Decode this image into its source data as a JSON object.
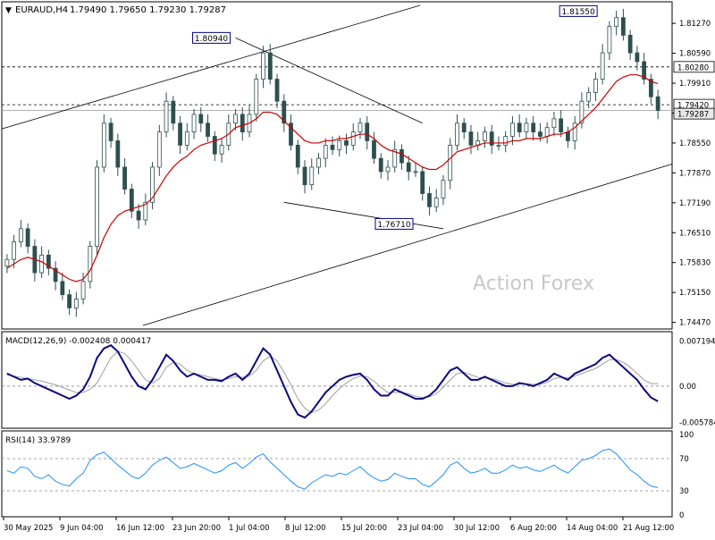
{
  "header": {
    "arrow": "▼",
    "symbol": "EURAUD,H4",
    "ohlc": "1.79490 1.79650 1.79230 1.79287"
  },
  "watermark": "Action Forex",
  "colors": {
    "candle": "#2f4f4f",
    "ma": "#cc0000",
    "macd_main": "#0a0a80",
    "macd_signal": "#a0a0a0",
    "rsi": "#1e90ff",
    "label_border": "#00008b",
    "watermark": "#c8c8c8"
  },
  "chart_data": [
    {
      "type": "candlestick",
      "title": "EURAUD,H4",
      "y_ticks": [
        "1.81270",
        "1.80590",
        "1.79910",
        "1.79230",
        "1.78550",
        "1.77870",
        "1.77190",
        "1.76510",
        "1.75830",
        "1.75150",
        "1.74470"
      ],
      "ylim": [
        1.7436,
        1.8172
      ],
      "x_ticks": [
        "30 May 2025",
        "9 Jun 04:00",
        "16 Jun 12:00",
        "23 Jun 20:00",
        "1 Jul 04:00",
        "8 Jul 12:00",
        "15 Jul 20:00",
        "23 Jul 04:00",
        "30 Jul 12:00",
        "6 Aug 20:00",
        "14 Aug 04:00",
        "21 Aug 12:00"
      ],
      "price_labels": [
        "1.80280",
        "1.79420",
        "1.79287"
      ],
      "level_lines": [
        1.8028,
        1.7942
      ],
      "swing_labels": [
        "1.80940",
        "1.76710",
        "1.81550"
      ],
      "close": [
        1.759,
        1.763,
        1.766,
        1.762,
        1.756,
        1.76,
        1.757,
        1.754,
        1.751,
        1.748,
        1.75,
        1.754,
        1.762,
        1.78,
        1.79,
        1.786,
        1.78,
        1.775,
        1.77,
        1.768,
        1.772,
        1.78,
        1.788,
        1.795,
        1.79,
        1.785,
        1.788,
        1.792,
        1.79,
        1.787,
        1.783,
        1.785,
        1.79,
        1.792,
        1.788,
        1.792,
        1.8,
        1.806,
        1.8,
        1.795,
        1.79,
        1.785,
        1.78,
        1.776,
        1.78,
        1.782,
        1.785,
        1.784,
        1.786,
        1.785,
        1.788,
        1.79,
        1.786,
        1.782,
        1.779,
        1.78,
        1.784,
        1.781,
        1.779,
        1.779,
        1.774,
        1.771,
        1.773,
        1.777,
        1.785,
        1.79,
        1.788,
        1.785,
        1.786,
        1.788,
        1.785,
        1.785,
        1.787,
        1.79,
        1.788,
        1.79,
        1.788,
        1.787,
        1.789,
        1.791,
        1.788,
        1.786,
        1.79,
        1.795,
        1.797,
        1.8,
        1.806,
        1.812,
        1.814,
        1.81,
        1.806,
        1.804,
        1.8,
        1.796,
        1.7929
      ],
      "moving_average": [
        1.757,
        1.758,
        1.759,
        1.7595,
        1.759,
        1.7585,
        1.7575,
        1.7565,
        1.7555,
        1.7545,
        1.754,
        1.7545,
        1.7565,
        1.76,
        1.764,
        1.767,
        1.769,
        1.77,
        1.7705,
        1.771,
        1.7715,
        1.773,
        1.7755,
        1.778,
        1.78,
        1.7815,
        1.7825,
        1.784,
        1.785,
        1.7855,
        1.786,
        1.7865,
        1.7875,
        1.789,
        1.7895,
        1.79,
        1.791,
        1.7925,
        1.7925,
        1.792,
        1.7905,
        1.789,
        1.7875,
        1.786,
        1.7855,
        1.7855,
        1.786,
        1.786,
        1.7865,
        1.7865,
        1.787,
        1.7875,
        1.7875,
        1.7865,
        1.785,
        1.784,
        1.7835,
        1.783,
        1.782,
        1.781,
        1.78,
        1.7795,
        1.7795,
        1.7805,
        1.782,
        1.7835,
        1.784,
        1.7845,
        1.785,
        1.7855,
        1.7855,
        1.7855,
        1.7855,
        1.786,
        1.786,
        1.7865,
        1.7865,
        1.7865,
        1.787,
        1.7875,
        1.7875,
        1.788,
        1.789,
        1.7905,
        1.792,
        1.7935,
        1.7955,
        1.7975,
        1.7995,
        1.8005,
        1.801,
        1.801,
        1.8005,
        1.7995,
        1.799
      ]
    },
    {
      "type": "line",
      "title": "MACD(12,26,9) -0.002408 0.000417",
      "y_ticks": [
        "0.007194",
        "0.00",
        "-0.005784"
      ],
      "ylim": [
        -0.0064,
        0.0078
      ],
      "series": [
        {
          "values": [
            0.002,
            0.0015,
            0.001,
            0.0012,
            0.0005,
            0.0,
            -0.0005,
            -0.001,
            -0.0015,
            -0.002,
            -0.0015,
            -0.0005,
            0.0015,
            0.0045,
            0.006,
            0.0065,
            0.0055,
            0.0035,
            0.0015,
            0.0,
            -0.0005,
            0.001,
            0.003,
            0.005,
            0.004,
            0.0025,
            0.0015,
            0.002,
            0.0015,
            0.001,
            0.001,
            0.0008,
            0.0015,
            0.002,
            0.001,
            0.002,
            0.004,
            0.006,
            0.005,
            0.0025,
            0.0,
            -0.0025,
            -0.0045,
            -0.005,
            -0.004,
            -0.0025,
            -0.001,
            0.0,
            0.001,
            0.0015,
            0.0018,
            0.002,
            0.001,
            -0.0005,
            -0.0015,
            -0.0015,
            -0.0005,
            -0.001,
            -0.0015,
            -0.002,
            -0.002,
            -0.0015,
            -0.0005,
            0.001,
            0.0025,
            0.003,
            0.002,
            0.001,
            0.001,
            0.0015,
            0.001,
            0.0005,
            0.0,
            0.0,
            0.0005,
            0.0003,
            0.0,
            0.0005,
            0.001,
            0.002,
            0.0015,
            0.001,
            0.002,
            0.0025,
            0.003,
            0.0035,
            0.0045,
            0.005,
            0.004,
            0.003,
            0.002,
            0.001,
            -0.0005,
            -0.0018,
            -0.0024
          ]
        },
        {
          "values": [
            0.0018,
            0.0016,
            0.0014,
            0.0012,
            0.001,
            0.0008,
            0.0005,
            0.0002,
            -0.0002,
            -0.0006,
            -0.001,
            -0.001,
            -0.0005,
            0.0005,
            0.0025,
            0.0045,
            0.0055,
            0.0052,
            0.004,
            0.0025,
            0.001,
            0.0005,
            0.0012,
            0.003,
            0.0038,
            0.0035,
            0.0025,
            0.002,
            0.0018,
            0.0015,
            0.0012,
            0.001,
            0.0012,
            0.0015,
            0.0014,
            0.0016,
            0.0025,
            0.004,
            0.0048,
            0.004,
            0.0022,
            0.0002,
            -0.002,
            -0.0035,
            -0.0042,
            -0.0038,
            -0.0028,
            -0.0015,
            -0.0004,
            0.0005,
            0.0012,
            0.0016,
            0.0015,
            0.0008,
            -0.0002,
            -0.001,
            -0.001,
            -0.001,
            -0.0012,
            -0.0016,
            -0.0018,
            -0.0017,
            -0.0012,
            -0.0002,
            0.001,
            0.002,
            0.0022,
            0.0018,
            0.0014,
            0.0013,
            0.0012,
            0.0009,
            0.0005,
            0.0003,
            0.0003,
            0.0004,
            0.0003,
            0.0003,
            0.0006,
            0.0012,
            0.0014,
            0.0013,
            0.0016,
            0.002,
            0.0024,
            0.0028,
            0.0035,
            0.0042,
            0.0042,
            0.0038,
            0.003,
            0.002,
            0.001,
            0.0004,
            0.0004
          ]
        }
      ]
    },
    {
      "type": "line",
      "title": "RSI(14) 33.9789",
      "y_ticks": [
        "100",
        "70",
        "30",
        "0"
      ],
      "ylim": [
        0,
        100
      ],
      "series": [
        {
          "values": [
            55,
            52,
            60,
            58,
            48,
            45,
            50,
            42,
            38,
            36,
            45,
            52,
            68,
            75,
            78,
            70,
            62,
            55,
            48,
            45,
            52,
            62,
            68,
            72,
            65,
            58,
            60,
            64,
            60,
            56,
            52,
            55,
            62,
            65,
            58,
            64,
            72,
            76,
            66,
            58,
            50,
            42,
            35,
            32,
            40,
            45,
            50,
            48,
            52,
            50,
            55,
            60,
            52,
            46,
            42,
            44,
            52,
            48,
            45,
            45,
            38,
            35,
            42,
            50,
            62,
            66,
            58,
            52,
            54,
            58,
            52,
            52,
            56,
            62,
            58,
            60,
            56,
            54,
            58,
            62,
            56,
            52,
            60,
            68,
            70,
            74,
            80,
            82,
            76,
            66,
            56,
            50,
            42,
            36,
            34
          ]
        }
      ]
    }
  ]
}
